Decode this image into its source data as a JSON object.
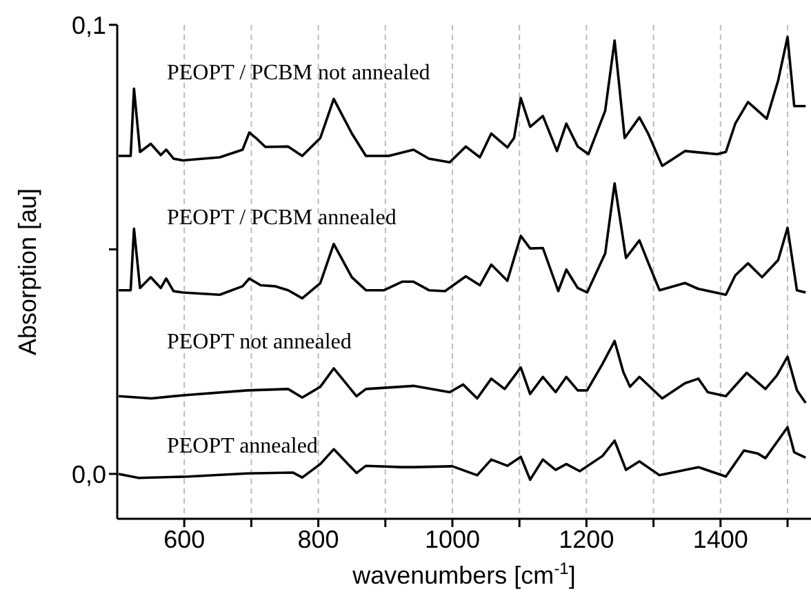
{
  "chart_data": {
    "type": "line",
    "xlabel": "wavenumbers [cm$^{-1}$]",
    "ylabel": "Absorption [au]",
    "xlim": [
      500,
      1535
    ],
    "xticks": [
      600,
      {
        "value": 700,
        "label": null
      },
      800,
      {
        "value": 900,
        "label": null
      },
      1000,
      {
        "value": 1100,
        "label": null
      },
      1200,
      {
        "value": 1300,
        "label": null
      },
      1400,
      {
        "value": 1500,
        "label": null
      }
    ],
    "ylim": [
      -0.01,
      0.1
    ],
    "yticks": [
      {
        "value": 0,
        "label": "0,0"
      },
      {
        "value": 0.05,
        "label": null
      },
      {
        "value": 0.1,
        "label": "0,1"
      }
    ],
    "grid": "x",
    "marker": "none",
    "line_style": "solid",
    "series": [
      {
        "name": "PEOPT / PCBM not annealed",
        "color": "#000000",
        "x": [
          502,
          520,
          525,
          534,
          550,
          565,
          573,
          584,
          598,
          653,
          687,
          697,
          707,
          721,
          755,
          776,
          803,
          823,
          850,
          871,
          905,
          942,
          965,
          996,
          1020,
          1041,
          1058,
          1082,
          1092,
          1102,
          1116,
          1135,
          1156,
          1170,
          1187,
          1203,
          1228,
          1242,
          1257,
          1279,
          1292,
          1313,
          1347,
          1395,
          1408,
          1422,
          1441,
          1469,
          1486,
          1500,
          1510,
          1527
        ],
        "values": [
          0.0708,
          0.0708,
          0.0858,
          0.0717,
          0.0735,
          0.071,
          0.0722,
          0.0702,
          0.0698,
          0.0705,
          0.0722,
          0.076,
          0.0748,
          0.0728,
          0.0729,
          0.0708,
          0.0748,
          0.0835,
          0.0758,
          0.0708,
          0.0708,
          0.0722,
          0.0702,
          0.0694,
          0.0729,
          0.0705,
          0.0758,
          0.0727,
          0.0748,
          0.0837,
          0.0773,
          0.0797,
          0.0719,
          0.078,
          0.0729,
          0.0712,
          0.0809,
          0.0965,
          0.0748,
          0.0794,
          0.0758,
          0.0686,
          0.0719,
          0.0712,
          0.0717,
          0.078,
          0.0828,
          0.0791,
          0.0876,
          0.0973,
          0.0819,
          0.0819
        ]
      },
      {
        "name": "PEOPT / PCBM annealed",
        "color": "#000000",
        "x": [
          502,
          520,
          525,
          534,
          550,
          565,
          573,
          584,
          598,
          653,
          687,
          697,
          714,
          735,
          755,
          776,
          803,
          823,
          850,
          871,
          898,
          925,
          942,
          965,
          989,
          1020,
          1041,
          1058,
          1082,
          1102,
          1116,
          1135,
          1158,
          1170,
          1187,
          1201,
          1228,
          1242,
          1259,
          1279,
          1292,
          1309,
          1347,
          1367,
          1408,
          1422,
          1441,
          1462,
          1486,
          1500,
          1514,
          1527
        ],
        "values": [
          0.0409,
          0.0409,
          0.0546,
          0.0414,
          0.0438,
          0.0414,
          0.0435,
          0.0407,
          0.0404,
          0.0399,
          0.0418,
          0.0435,
          0.042,
          0.0418,
          0.0409,
          0.0391,
          0.0425,
          0.0512,
          0.0438,
          0.0409,
          0.0409,
          0.0428,
          0.0428,
          0.0409,
          0.0407,
          0.044,
          0.042,
          0.0466,
          0.043,
          0.053,
          0.0502,
          0.0503,
          0.0407,
          0.0455,
          0.0414,
          0.0404,
          0.0491,
          0.0647,
          0.0481,
          0.052,
          0.0471,
          0.0409,
          0.0425,
          0.0412,
          0.0399,
          0.0442,
          0.0469,
          0.0438,
          0.0476,
          0.0548,
          0.0409,
          0.0404
        ]
      },
      {
        "name": "PEOPT not annealed",
        "color": "#000000",
        "x": [
          502,
          551,
          598,
          694,
          755,
          776,
          803,
          823,
          857,
          871,
          942,
          996,
          1016,
          1037,
          1058,
          1078,
          1102,
          1116,
          1135,
          1154,
          1170,
          1187,
          1201,
          1224,
          1242,
          1255,
          1265,
          1279,
          1313,
          1347,
          1367,
          1381,
          1408,
          1439,
          1467,
          1484,
          1500,
          1514,
          1527
        ],
        "values": [
          0.0173,
          0.0168,
          0.0175,
          0.0186,
          0.0189,
          0.017,
          0.0194,
          0.0235,
          0.0173,
          0.0189,
          0.0196,
          0.0182,
          0.0199,
          0.0168,
          0.0212,
          0.0189,
          0.0237,
          0.0178,
          0.0216,
          0.0182,
          0.0216,
          0.0186,
          0.0186,
          0.0245,
          0.0296,
          0.0227,
          0.0194,
          0.0216,
          0.0168,
          0.0202,
          0.0212,
          0.0182,
          0.0173,
          0.0225,
          0.0189,
          0.0219,
          0.0261,
          0.0186,
          0.0158
        ]
      },
      {
        "name": "PEOPT annealed",
        "color": "#000000",
        "x": [
          502,
          532,
          606,
          694,
          762,
          776,
          803,
          823,
          857,
          871,
          925,
          942,
          1000,
          1037,
          1058,
          1082,
          1102,
          1116,
          1135,
          1154,
          1170,
          1190,
          1224,
          1242,
          1259,
          1279,
          1309,
          1367,
          1408,
          1435,
          1456,
          1467,
          1500,
          1510,
          1527
        ],
        "values": [
          0,
          -0.0009,
          -0.0006,
          0.0001,
          0.0003,
          -0.0008,
          0.0022,
          0.0055,
          0.0002,
          0.0018,
          0.0015,
          0.0015,
          0.0017,
          -0.0003,
          0.0032,
          0.0018,
          0.0038,
          -0.0013,
          0.0032,
          0.0009,
          0.0022,
          0.0006,
          0.004,
          0.0074,
          0.0009,
          0.0028,
          -0.0003,
          0.0015,
          -0.0006,
          0.0052,
          0.0045,
          0.0035,
          0.0104,
          0.0048,
          0.0036
        ]
      }
    ]
  }
}
